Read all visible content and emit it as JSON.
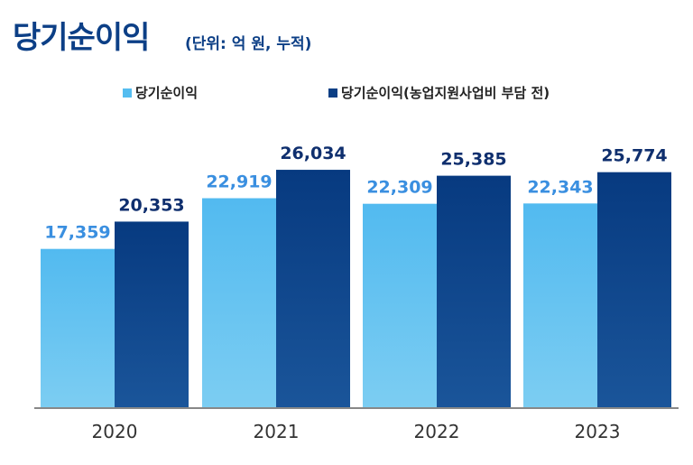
{
  "chart_data": {
    "type": "bar",
    "title": "당기순이익",
    "subtitle": "(단위: 억 원, 누적)",
    "categories": [
      "2020",
      "2021",
      "2022",
      "2023"
    ],
    "series": [
      {
        "name": "당기순이익",
        "values": [
          17359,
          22919,
          22309,
          22343
        ],
        "labels": [
          "17,359",
          "22,919",
          "22,309",
          "22,343"
        ],
        "color": "#55bdf0",
        "label_color": "#3a8fe0"
      },
      {
        "name": "당기순이익(농업지원사업비 부담 전)",
        "values": [
          20353,
          26034,
          25385,
          25774
        ],
        "labels": [
          "20,353",
          "26,034",
          "25,385",
          "25,774"
        ],
        "color": "#0b3f85",
        "label_color": "#0f2f6e"
      }
    ],
    "ylim": [
      0,
      30000
    ],
    "grid": false,
    "legend": "top-center"
  }
}
